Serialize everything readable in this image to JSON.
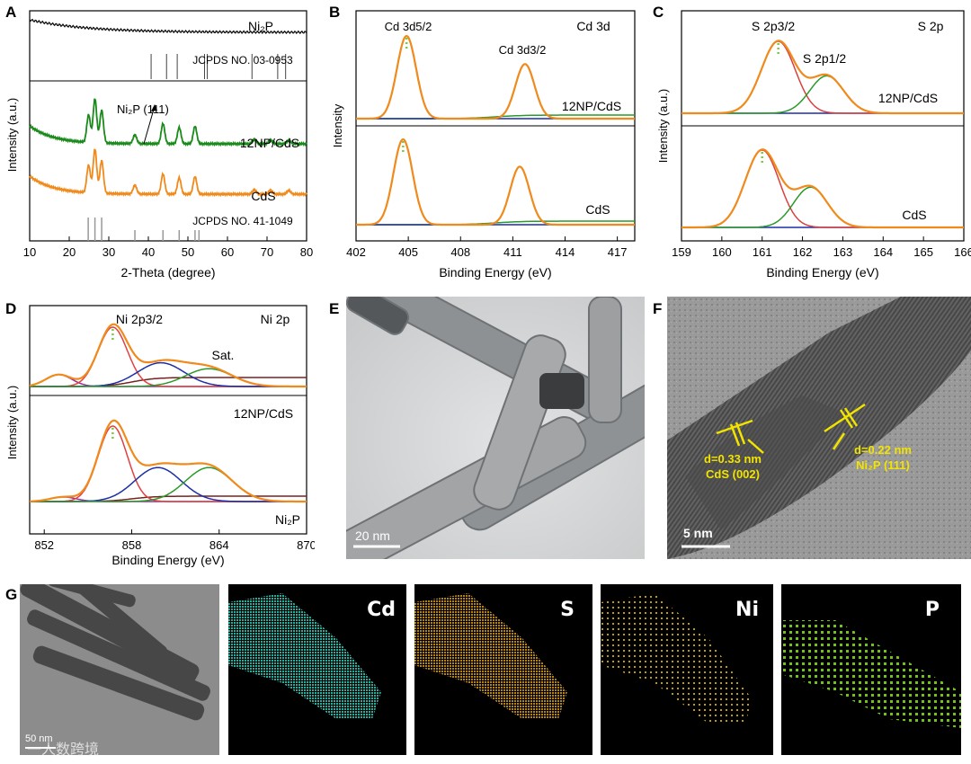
{
  "panels": {
    "A": {
      "label": "A",
      "xlabel": "2-Theta (degree)",
      "ylabel": "Intensity (a.u.)",
      "xticks": [
        "10",
        "20",
        "30",
        "40",
        "50",
        "60",
        "70",
        "80"
      ],
      "series_labels": [
        "Ni₂P",
        "12NP/CdS",
        "CdS"
      ],
      "ref_top": "JCPDS NO. 03-0953",
      "ref_bottom": "JCPDS NO. 41-1049",
      "annotation": "Ni₂P (111)"
    },
    "B": {
      "label": "B",
      "title": "Cd 3d",
      "xlabel": "Binding Energy (eV)",
      "ylabel": "Intensity",
      "xticks": [
        "402",
        "405",
        "408",
        "411",
        "414",
        "417"
      ],
      "peak1": "Cd 3d5/2",
      "peak2": "Cd 3d3/2",
      "sample_top": "12NP/CdS",
      "sample_bottom": "CdS"
    },
    "C": {
      "label": "C",
      "title": "S 2p",
      "xlabel": "Binding Energy (eV)",
      "ylabel": "Intensity (a.u.)",
      "xticks": [
        "159",
        "160",
        "161",
        "162",
        "163",
        "164",
        "165",
        "166"
      ],
      "peak1": "S 2p3/2",
      "peak2": "S 2p1/2",
      "sample_top": "12NP/CdS",
      "sample_bottom": "CdS"
    },
    "D": {
      "label": "D",
      "title": "Ni 2p",
      "xlabel": "Binding Energy (eV)",
      "ylabel": "Intensity (a.u.)",
      "xticks": [
        "852",
        "858",
        "864",
        "870"
      ],
      "peak1": "Ni 2p3/2",
      "peak2": "Sat.",
      "sample_top": "12NP/CdS",
      "sample_bottom": "Ni₂P"
    },
    "E": {
      "label": "E",
      "scale": "20 nm"
    },
    "F": {
      "label": "F",
      "scale": "5 nm",
      "d1": "d=0.33 nm",
      "d1_plane": "CdS (002)",
      "d2": "d=0.22 nm",
      "d2_plane": "Ni₂P (111)"
    },
    "G": {
      "label": "G",
      "scale": "50 nm",
      "maps": [
        "Cd",
        "S",
        "Ni",
        "P"
      ]
    }
  },
  "watermark": "一人数跨境",
  "chart_data": [
    {
      "type": "line",
      "panel": "A",
      "xlabel": "2-Theta (degree)",
      "ylabel": "Intensity (a.u.)",
      "xlim": [
        10,
        80
      ],
      "series": [
        {
          "name": "Ni2P",
          "color": "#111111",
          "x": [
            10,
            20,
            30,
            40,
            50,
            60,
            70,
            80
          ],
          "y": [
            10,
            8.6,
            8.1,
            7.8,
            7.6,
            7.5,
            7.4,
            7.35
          ]
        },
        {
          "name": "12NP/CdS",
          "color": "#1a8a1a",
          "peaks": [
            24.9,
            26.5,
            28.2,
            36.6,
            43.7,
            47.8,
            51.8,
            66.8,
            70.9,
            75.5
          ],
          "peak_heights": [
            2.2,
            3.5,
            2.6,
            0.7,
            1.6,
            1.3,
            1.4,
            0.35,
            0.3,
            0.3
          ]
        },
        {
          "name": "CdS",
          "color": "#f08a1c",
          "peaks": [
            24.9,
            26.5,
            28.2,
            36.6,
            43.7,
            47.8,
            51.8,
            66.8,
            70.9,
            75.5
          ],
          "peak_heights": [
            2.2,
            3.5,
            2.6,
            0.7,
            1.6,
            1.3,
            1.4,
            0.35,
            0.3,
            0.3
          ]
        }
      ],
      "ref_Ni2P": [
        40.7,
        44.6,
        47.3,
        54.2,
        54.9,
        66.2,
        72.7,
        74.7
      ],
      "ref_CdS": [
        24.8,
        26.5,
        28.2,
        36.6,
        43.7,
        47.8,
        51.8,
        52.8
      ]
    },
    {
      "type": "line",
      "panel": "B",
      "xlabel": "Binding Energy (eV)",
      "xlim": [
        402,
        418
      ],
      "series": [
        {
          "name": "12NP/CdS",
          "peaks": [
            404.9,
            411.7
          ],
          "heights": [
            1.0,
            0.66
          ]
        },
        {
          "name": "CdS",
          "peaks": [
            404.7,
            411.4
          ],
          "heights": [
            1.0,
            0.68
          ]
        }
      ]
    },
    {
      "type": "line",
      "panel": "C",
      "xlabel": "Binding Energy (eV)",
      "xlim": [
        159,
        166
      ],
      "series": [
        {
          "name": "12NP/CdS",
          "peaks": [
            161.4,
            162.6
          ],
          "heights": [
            1.0,
            0.52
          ]
        },
        {
          "name": "CdS",
          "peaks": [
            161.0,
            162.2
          ],
          "heights": [
            1.0,
            0.52
          ]
        }
      ]
    },
    {
      "type": "line",
      "panel": "D",
      "xlabel": "Binding Energy (eV)",
      "xlim": [
        851,
        870
      ],
      "series": [
        {
          "name": "12NP/CdS",
          "peaks": [
            853.0,
            856.7,
            860.0,
            863.3
          ],
          "heights": [
            0.2,
            1.0,
            0.4,
            0.3
          ]
        },
        {
          "name": "Ni2P",
          "peaks": [
            853.3,
            856.7,
            859.8,
            863.3
          ],
          "heights": [
            0.06,
            1.0,
            0.45,
            0.45
          ]
        }
      ]
    }
  ]
}
